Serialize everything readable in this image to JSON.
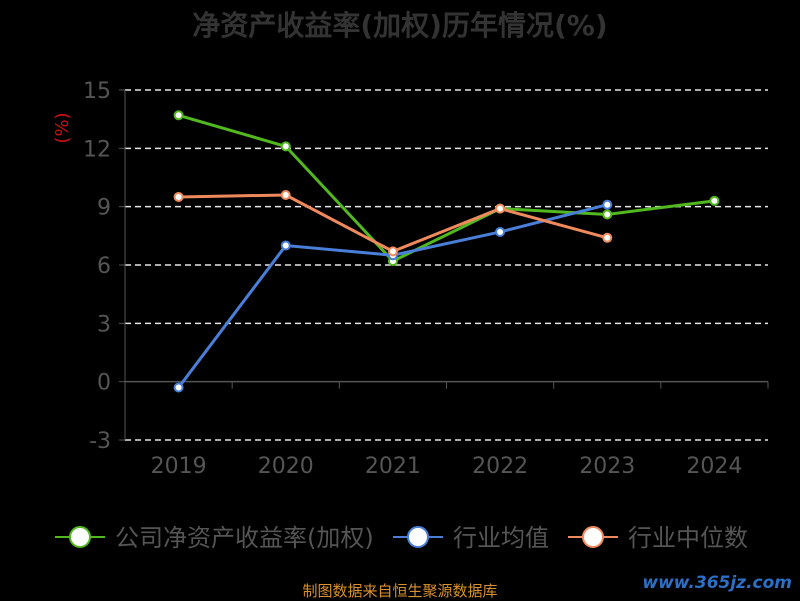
{
  "chart_data": {
    "type": "line",
    "title": "净资产收益率(加权)历年情况(%)",
    "ylabel": "(%)",
    "xlabel": "",
    "categories": [
      "2019",
      "2020",
      "2021",
      "2022",
      "2023",
      "2024"
    ],
    "ylim": [
      -3,
      15
    ],
    "yticks": [
      -3,
      0,
      3,
      6,
      9,
      12,
      15
    ],
    "grid": true,
    "legend_position": "bottom",
    "series": [
      {
        "name": "公司净资产收益率(加权)",
        "color": "#52b81f",
        "values": [
          13.7,
          12.1,
          6.2,
          8.9,
          8.6,
          9.3
        ]
      },
      {
        "name": "行业均值",
        "color": "#4a7fd9",
        "values": [
          -0.3,
          7.0,
          6.5,
          7.7,
          9.1,
          null
        ]
      },
      {
        "name": "行业中位数",
        "color": "#f08a5d",
        "values": [
          9.5,
          9.6,
          6.7,
          8.9,
          7.4,
          null
        ]
      }
    ]
  },
  "footer": {
    "source": "制图数据来自恒生聚源数据库",
    "watermark": "www.365jz.com"
  }
}
